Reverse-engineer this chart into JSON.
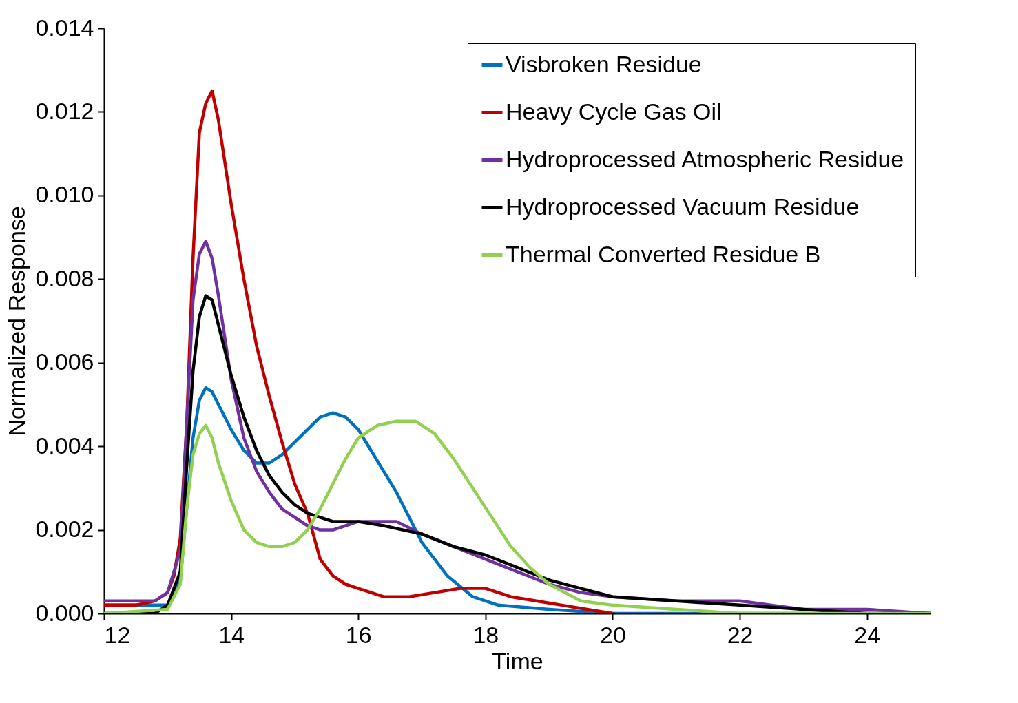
{
  "chart_data": {
    "type": "line",
    "xlabel": "Time",
    "ylabel": "Normalized Response",
    "xlim": [
      12,
      25
    ],
    "xticks": [
      12,
      14,
      16,
      18,
      20,
      22,
      24
    ],
    "ylim": [
      0,
      0.014
    ],
    "yticks": [
      {
        "value": 0,
        "label": "0.000"
      },
      {
        "value": 0.002,
        "label": "0.002"
      },
      {
        "value": 0.004,
        "label": "0.004"
      },
      {
        "value": 0.006,
        "label": "0.006"
      },
      {
        "value": 0.008,
        "label": "0.008"
      },
      {
        "value": 0.01,
        "label": "0.010"
      },
      {
        "value": 0.012,
        "label": "0.012"
      },
      {
        "value": 0.014,
        "label": "0.014"
      }
    ],
    "grid": false,
    "legend": "top right",
    "line_style": "solid",
    "series": [
      {
        "name": "Visbroken Residue",
        "color": "#0070c0",
        "x": [
          12,
          13,
          13.2,
          13.3,
          13.4,
          13.5,
          13.6,
          13.7,
          13.8,
          14,
          14.2,
          14.4,
          14.6,
          14.8,
          15,
          15.2,
          15.4,
          15.6,
          15.8,
          16,
          16.2,
          16.4,
          16.6,
          16.8,
          17,
          17.2,
          17.4,
          17.8,
          18.2,
          19,
          20,
          22,
          24,
          25
        ],
        "values": [
          0.0002,
          0.0002,
          0.0008,
          0.0025,
          0.0042,
          0.0051,
          0.0054,
          0.0053,
          0.005,
          0.0044,
          0.0039,
          0.0036,
          0.0036,
          0.0038,
          0.0041,
          0.0044,
          0.0047,
          0.0048,
          0.0047,
          0.0044,
          0.0039,
          0.0034,
          0.0029,
          0.0023,
          0.0017,
          0.0013,
          0.0009,
          0.0004,
          0.0002,
          0.0001,
          0,
          0,
          0,
          0
        ]
      },
      {
        "name": "Heavy Cycle Gas Oil",
        "color": "#c00000",
        "x": [
          12,
          12.5,
          12.8,
          13,
          13.1,
          13.2,
          13.3,
          13.4,
          13.5,
          13.6,
          13.7,
          13.8,
          13.9,
          14,
          14.1,
          14.2,
          14.4,
          14.6,
          14.8,
          15,
          15.2,
          15.4,
          15.6,
          15.8,
          16,
          16.4,
          16.8,
          17.2,
          17.6,
          18,
          18.4,
          18.8,
          19.2,
          19.6,
          20
        ],
        "values": [
          0.0002,
          0.0002,
          0.0003,
          0.0005,
          0.0009,
          0.0018,
          0.0045,
          0.0085,
          0.0115,
          0.0122,
          0.0125,
          0.0118,
          0.0108,
          0.0098,
          0.0089,
          0.008,
          0.0064,
          0.0052,
          0.0041,
          0.0031,
          0.0024,
          0.0013,
          0.0009,
          0.0007,
          0.0006,
          0.0004,
          0.0004,
          0.0005,
          0.0006,
          0.0006,
          0.0004,
          0.0003,
          0.0002,
          0.0001,
          0
        ]
      },
      {
        "name": "Hydroprocessed Atmospheric Residue",
        "color": "#7030a0",
        "x": [
          12,
          12.8,
          13,
          13.2,
          13.3,
          13.4,
          13.5,
          13.6,
          13.7,
          13.8,
          13.9,
          14,
          14.2,
          14.4,
          14.6,
          14.8,
          15,
          15.2,
          15.4,
          15.6,
          15.8,
          16,
          16.3,
          16.6,
          17,
          17.5,
          18,
          18.5,
          19,
          19.5,
          20,
          21,
          21.5,
          22,
          22.5,
          23,
          24,
          25
        ],
        "values": [
          0.0003,
          0.0003,
          0.0005,
          0.0015,
          0.0045,
          0.0075,
          0.0086,
          0.0089,
          0.0085,
          0.0076,
          0.0066,
          0.0056,
          0.0042,
          0.0034,
          0.0029,
          0.0025,
          0.0023,
          0.0021,
          0.002,
          0.002,
          0.0021,
          0.0022,
          0.0022,
          0.0022,
          0.0019,
          0.0016,
          0.0013,
          0.001,
          0.0007,
          0.0005,
          0.0004,
          0.0003,
          0.0003,
          0.0003,
          0.0002,
          0.0001,
          0.0001,
          0
        ]
      },
      {
        "name": "Hydroprocessed Vacuum Residue",
        "color": "#000000",
        "x": [
          12,
          12.8,
          13,
          13.2,
          13.3,
          13.4,
          13.5,
          13.6,
          13.7,
          13.8,
          14,
          14.2,
          14.4,
          14.6,
          14.8,
          15,
          15.2,
          15.4,
          15.6,
          16,
          16.4,
          17,
          17.5,
          18,
          18.5,
          19,
          19.5,
          20,
          21,
          22,
          23,
          24,
          25
        ],
        "values": [
          0,
          0,
          0.0002,
          0.001,
          0.0035,
          0.0058,
          0.0071,
          0.0076,
          0.0075,
          0.0069,
          0.0057,
          0.0047,
          0.0039,
          0.0033,
          0.0029,
          0.0026,
          0.0024,
          0.0023,
          0.0022,
          0.0022,
          0.0021,
          0.0019,
          0.0016,
          0.0014,
          0.0011,
          0.0008,
          0.0006,
          0.0004,
          0.0003,
          0.0002,
          0.0001,
          0,
          0
        ]
      },
      {
        "name": "Thermal Converted Residue B",
        "color": "#92d050",
        "x": [
          12,
          13,
          13.2,
          13.3,
          13.4,
          13.5,
          13.6,
          13.7,
          13.8,
          14,
          14.2,
          14.4,
          14.6,
          14.8,
          15,
          15.2,
          15.4,
          15.6,
          15.8,
          16,
          16.3,
          16.6,
          16.9,
          17.2,
          17.5,
          17.8,
          18.1,
          18.4,
          18.7,
          19,
          19.5,
          20,
          21,
          22,
          24,
          25
        ],
        "values": [
          0,
          0.0001,
          0.0007,
          0.0025,
          0.0038,
          0.0043,
          0.0045,
          0.0042,
          0.0036,
          0.0027,
          0.002,
          0.0017,
          0.0016,
          0.0016,
          0.0017,
          0.002,
          0.0025,
          0.0031,
          0.0037,
          0.0042,
          0.0045,
          0.0046,
          0.0046,
          0.0043,
          0.0037,
          0.003,
          0.0023,
          0.0016,
          0.0011,
          0.0007,
          0.0003,
          0.0002,
          0.0001,
          0,
          0,
          0
        ]
      }
    ]
  }
}
